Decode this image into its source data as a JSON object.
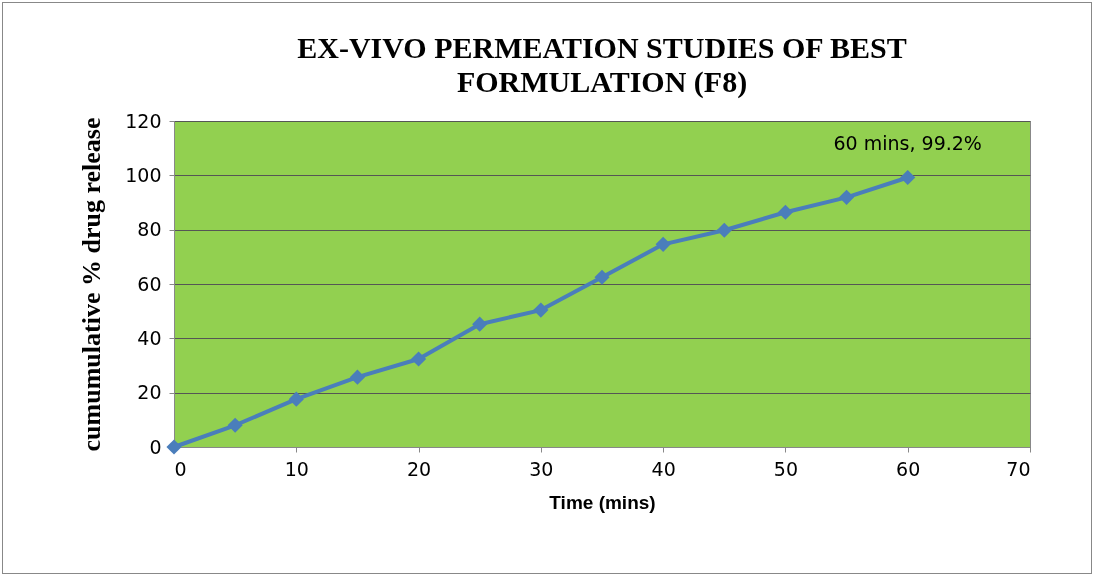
{
  "chart_data": {
    "type": "line",
    "title": "EX-VIVO PERMEATION STUDIES OF BEST FORMULATION (F8)",
    "xlabel": "Time (mins)",
    "ylabel": "cumumulative %  drug release",
    "x": [
      0,
      5,
      10,
      15,
      20,
      25,
      30,
      35,
      40,
      45,
      50,
      55,
      60
    ],
    "series": [
      {
        "color": "#4a7ebb",
        "values": [
          0,
          8,
          17.6,
          25.7,
          32.4,
          45.2,
          50.4,
          62.5,
          74.6,
          79.8,
          86.4,
          91.9,
          99.2
        ]
      }
    ],
    "xlim": [
      0,
      70
    ],
    "xticks": [
      0,
      10,
      20,
      30,
      40,
      50,
      60,
      70
    ],
    "ylim": [
      0,
      120
    ],
    "yticks": [
      0,
      20,
      40,
      60,
      80,
      100,
      120
    ],
    "grid": "y",
    "marker": "diamond",
    "line_style": "solid",
    "annotations": [
      {
        "text": "60 mins, 99.2%",
        "x": 60,
        "y": 99.2
      }
    ]
  }
}
